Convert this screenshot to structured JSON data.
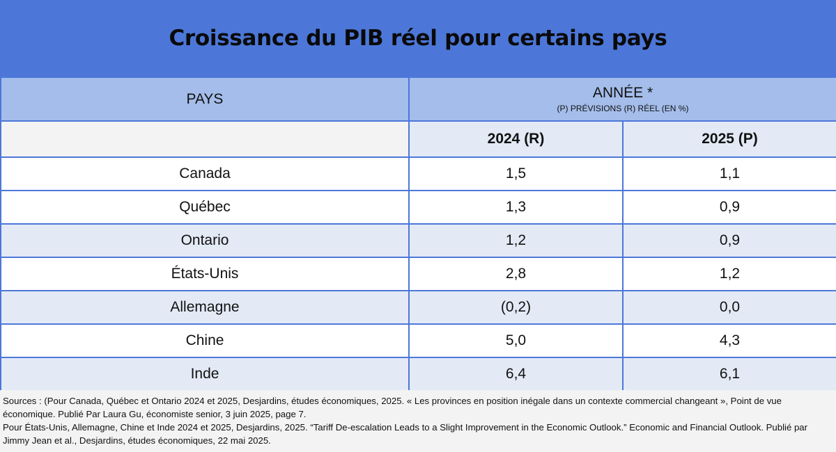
{
  "title": "Croissance du PIB réel pour certains pays",
  "chart_data": {
    "type": "table",
    "title": "Croissance du PIB réel pour certains pays",
    "header": {
      "country_col": "PAYS",
      "year_group": "ANNÉE *",
      "year_group_note": "(P) PRÉVISIONS (R) RÉEL (EN %)",
      "years": [
        "2024 (R)",
        "2025 (P)"
      ]
    },
    "rows": [
      {
        "country": "Canada",
        "v2024": "1,5",
        "v2025": "1,1"
      },
      {
        "country": "Québec",
        "v2024": "1,3",
        "v2025": "0,9"
      },
      {
        "country": "Ontario",
        "v2024": "1,2",
        "v2025": "0,9"
      },
      {
        "country": "États-Unis",
        "v2024": "2,8",
        "v2025": "1,2"
      },
      {
        "country": "Allemagne",
        "v2024": "(0,2)",
        "v2025": "0,0"
      },
      {
        "country": "Chine",
        "v2024": "5,0",
        "v2025": "4,3"
      },
      {
        "country": "Inde",
        "v2024": "6,4",
        "v2025": "6,1"
      }
    ]
  },
  "sources": [
    "Sources : (Pour Canada, Québec et Ontario 2024 et 2025, Desjardins, études économiques, 2025. « Les provinces en position inégale dans un contexte commercial changeant », Point de vue économique. Publié Par Laura Gu, économiste senior, 3 juin 2025, page 7.",
    "Pour États-Unis, Allemagne, Chine et Inde 2024 et 2025, Desjardins, 2025. “Tariff De-escalation Leads to a Slight Improvement in the Economic Outlook.” Economic and Financial Outlook. Publié par Jimmy Jean et al., Desjardins, études économiques, 22 mai 2025."
  ],
  "colors": {
    "title_bg": "#4c77d9",
    "header_bg": "#a4bdea",
    "shade_row": "#e3eaf6",
    "border": "#4c77d9"
  }
}
